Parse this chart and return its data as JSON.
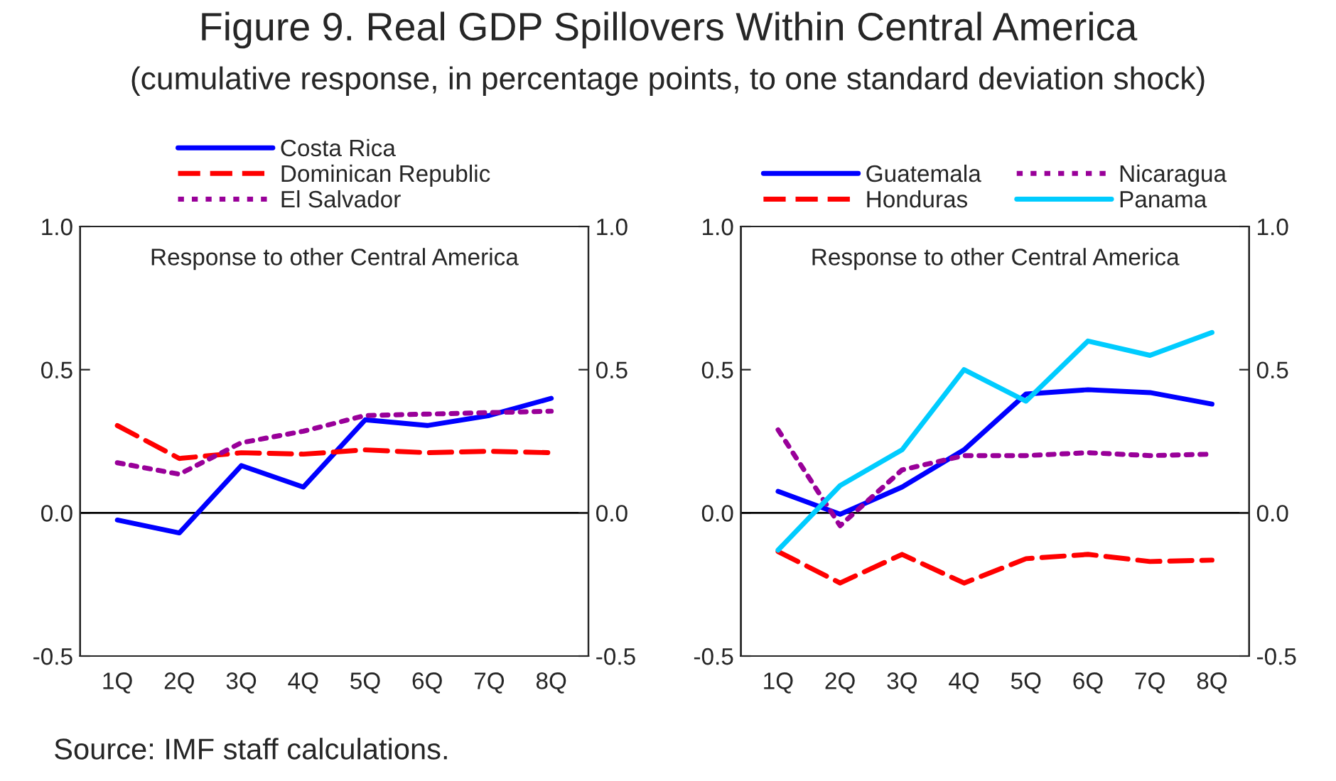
{
  "chart_data": [
    {
      "type": "line",
      "title": "Figure 9. Real GDP Spillovers Within Central America",
      "subtitle": "(cumulative response, in percentage points, to one standard deviation shock)",
      "categories": [
        "1Q",
        "2Q",
        "3Q",
        "4Q",
        "5Q",
        "6Q",
        "7Q",
        "8Q"
      ],
      "series": [
        {
          "name": "Costa Rica",
          "color": "#0000ff",
          "line_style": "solid",
          "values": [
            -0.025,
            -0.07,
            0.165,
            0.09,
            0.325,
            0.305,
            0.34,
            0.4
          ]
        },
        {
          "name": "Dominican Republic",
          "color": "#ff0000",
          "line_style": "dashed",
          "values": [
            0.305,
            0.19,
            0.21,
            0.205,
            0.22,
            0.21,
            0.215,
            0.21
          ]
        },
        {
          "name": "El Salvador",
          "color": "#990099",
          "line_style": "dotted",
          "values": [
            0.175,
            0.135,
            0.245,
            0.285,
            0.34,
            0.345,
            0.35,
            0.355
          ]
        }
      ],
      "ylim": [
        -0.5,
        1.0
      ],
      "yticks": [
        {
          "value": -0.5,
          "label": "-0.5"
        },
        {
          "value": 0.0,
          "label": "0.0"
        },
        {
          "value": 0.5,
          "label": "0.5"
        },
        {
          "value": 1.0,
          "label": "1.0"
        }
      ],
      "y2lim": [
        -0.5,
        1.0
      ],
      "y2ticks": [
        {
          "value": -0.5,
          "label": "-0.5"
        },
        {
          "value": 0.0,
          "label": "0.0"
        },
        {
          "value": 0.5,
          "label": "0.5"
        },
        {
          "value": 1.0,
          "label": "1.0"
        }
      ],
      "ref_lines": [
        {
          "axis": "y",
          "value": 0,
          "color": "#000000"
        }
      ],
      "legend": "top",
      "grid": false,
      "annotations": [
        "Response to other Central America",
        "Source: IMF staff calculations."
      ]
    },
    {
      "type": "line",
      "categories": [
        "1Q",
        "2Q",
        "3Q",
        "4Q",
        "5Q",
        "6Q",
        "7Q",
        "8Q"
      ],
      "series": [
        {
          "name": "Guatemala",
          "color": "#0000ff",
          "line_style": "solid",
          "values": [
            0.075,
            -0.005,
            0.09,
            0.22,
            0.415,
            0.43,
            0.42,
            0.38
          ]
        },
        {
          "name": "Honduras",
          "color": "#ff0000",
          "line_style": "dashed",
          "values": [
            -0.135,
            -0.245,
            -0.145,
            -0.245,
            -0.16,
            -0.145,
            -0.17,
            -0.165
          ]
        },
        {
          "name": "Nicaragua",
          "color": "#990099",
          "line_style": "dotted",
          "values": [
            0.29,
            -0.045,
            0.15,
            0.2,
            0.2,
            0.21,
            0.2,
            0.205
          ]
        },
        {
          "name": "Panama",
          "color": "#00ccff",
          "line_style": "solid",
          "values": [
            -0.13,
            0.095,
            0.22,
            0.5,
            0.39,
            0.6,
            0.55,
            0.63
          ]
        }
      ],
      "ylim": [
        -0.5,
        1.0
      ],
      "yticks": [
        {
          "value": -0.5,
          "label": "-0.5"
        },
        {
          "value": 0.0,
          "label": "0.0"
        },
        {
          "value": 0.5,
          "label": "0.5"
        },
        {
          "value": 1.0,
          "label": "1.0"
        }
      ],
      "y2lim": [
        -0.5,
        1.0
      ],
      "y2ticks": [
        {
          "value": -0.5,
          "label": "-0.5"
        },
        {
          "value": 0.0,
          "label": "0.0"
        },
        {
          "value": 0.5,
          "label": "0.5"
        },
        {
          "value": 1.0,
          "label": "1.0"
        }
      ],
      "ref_lines": [
        {
          "axis": "y",
          "value": 0,
          "color": "#000000"
        }
      ],
      "legend": "top",
      "grid": false,
      "annotations": [
        "Response to other Central America"
      ]
    }
  ]
}
